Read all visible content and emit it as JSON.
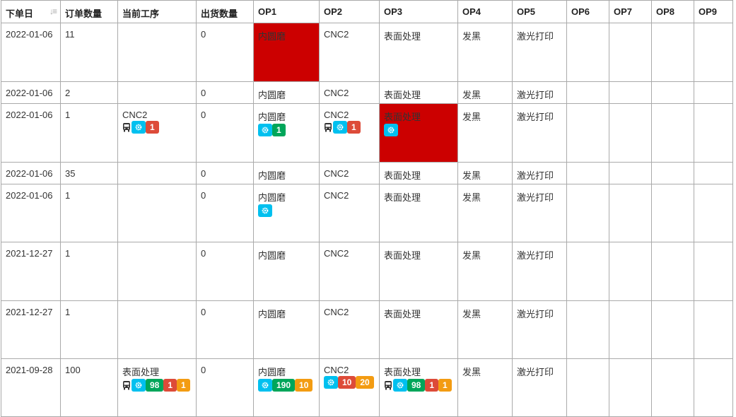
{
  "columns": [
    "下单日",
    "订单数量",
    "当前工序",
    "出货数量",
    "OP1",
    "OP2",
    "OP3",
    "OP4",
    "OP5",
    "OP6",
    "OP7",
    "OP8",
    "OP9"
  ],
  "sort_icon": "sort-amount-desc-icon",
  "colors": {
    "highlight": "#cc0000",
    "gear": "#00c0ef",
    "green": "#00a65a",
    "red": "#dd4b39",
    "orange": "#f39c12"
  },
  "rows": [
    {
      "h": 83,
      "cells": [
        {
          "t": "2022-01-06"
        },
        {
          "t": "11"
        },
        {
          "t": ""
        },
        {
          "t": "0"
        },
        {
          "t": "内圆磨",
          "hl": true
        },
        {
          "t": "CNC2"
        },
        {
          "t": "表面处理"
        },
        {
          "t": "发黑"
        },
        {
          "t": "激光打印"
        },
        {},
        {},
        {},
        {}
      ]
    },
    {
      "h": 31,
      "cells": [
        {
          "t": "2022-01-06"
        },
        {
          "t": "2"
        },
        {
          "t": ""
        },
        {
          "t": "0"
        },
        {
          "t": "内圆磨"
        },
        {
          "t": "CNC2"
        },
        {
          "t": "表面处理"
        },
        {
          "t": "发黑"
        },
        {
          "t": "激光打印"
        },
        {},
        {},
        {},
        {}
      ]
    },
    {
      "h": 83,
      "cells": [
        {
          "t": "2022-01-06"
        },
        {
          "t": "1"
        },
        {
          "t": "CNC2",
          "bus": true,
          "badges": [
            {
              "c": "gear"
            },
            {
              "c": "red",
              "l": "1"
            }
          ]
        },
        {
          "t": "0"
        },
        {
          "t": "内圆磨",
          "badges": [
            {
              "c": "gear"
            },
            {
              "c": "green",
              "l": "1"
            }
          ]
        },
        {
          "t": "CNC2",
          "bus": true,
          "badges": [
            {
              "c": "gear"
            },
            {
              "c": "red",
              "l": "1"
            }
          ]
        },
        {
          "t": "表面处理",
          "hl": true,
          "badges": [
            {
              "c": "gear"
            }
          ]
        },
        {
          "t": "发黑"
        },
        {
          "t": "激光打印"
        },
        {},
        {},
        {},
        {}
      ]
    },
    {
      "h": 31,
      "cells": [
        {
          "t": "2022-01-06"
        },
        {
          "t": "35"
        },
        {
          "t": ""
        },
        {
          "t": "0"
        },
        {
          "t": "内圆磨"
        },
        {
          "t": "CNC2"
        },
        {
          "t": "表面处理"
        },
        {
          "t": "发黑"
        },
        {
          "t": "激光打印"
        },
        {},
        {},
        {},
        {}
      ]
    },
    {
      "h": 82,
      "cells": [
        {
          "t": "2022-01-06"
        },
        {
          "t": "1"
        },
        {
          "t": ""
        },
        {
          "t": "0"
        },
        {
          "t": "内圆磨",
          "badges": [
            {
              "c": "gear"
            }
          ]
        },
        {
          "t": "CNC2"
        },
        {
          "t": "表面处理"
        },
        {
          "t": "发黑"
        },
        {
          "t": "激光打印"
        },
        {},
        {},
        {},
        {}
      ]
    },
    {
      "h": 83,
      "cells": [
        {
          "t": "2021-12-27"
        },
        {
          "t": "1"
        },
        {
          "t": ""
        },
        {
          "t": "0"
        },
        {
          "t": "内圆磨"
        },
        {
          "t": "CNC2"
        },
        {
          "t": "表面处理"
        },
        {
          "t": "发黑"
        },
        {
          "t": "激光打印"
        },
        {},
        {},
        {},
        {}
      ]
    },
    {
      "h": 82,
      "cells": [
        {
          "t": "2021-12-27"
        },
        {
          "t": "1"
        },
        {
          "t": ""
        },
        {
          "t": "0"
        },
        {
          "t": "内圆磨"
        },
        {
          "t": "CNC2"
        },
        {
          "t": "表面处理"
        },
        {
          "t": "发黑"
        },
        {
          "t": "激光打印"
        },
        {},
        {},
        {},
        {}
      ]
    },
    {
      "h": 82,
      "cells": [
        {
          "t": "2021-09-28"
        },
        {
          "t": "100"
        },
        {
          "t": "表面处理",
          "bus": true,
          "badges": [
            {
              "c": "gear"
            },
            {
              "c": "green",
              "l": "98"
            },
            {
              "c": "red",
              "l": "1"
            },
            {
              "c": "orange",
              "l": "1"
            }
          ]
        },
        {
          "t": "0"
        },
        {
          "t": "内圆磨",
          "badges": [
            {
              "c": "gear"
            },
            {
              "c": "green",
              "l": "190"
            },
            {
              "c": "orange",
              "l": "10"
            }
          ]
        },
        {
          "t": "CNC2",
          "badges": [
            {
              "c": "gear"
            },
            {
              "c": "red",
              "l": "10"
            },
            {
              "c": "orange",
              "l": "20"
            }
          ]
        },
        {
          "t": "表面处理",
          "bus": true,
          "badges": [
            {
              "c": "gear"
            },
            {
              "c": "green",
              "l": "98"
            },
            {
              "c": "red",
              "l": "1"
            },
            {
              "c": "orange",
              "l": "1"
            }
          ]
        },
        {
          "t": "发黑"
        },
        {
          "t": "激光打印"
        },
        {},
        {},
        {},
        {}
      ]
    }
  ]
}
